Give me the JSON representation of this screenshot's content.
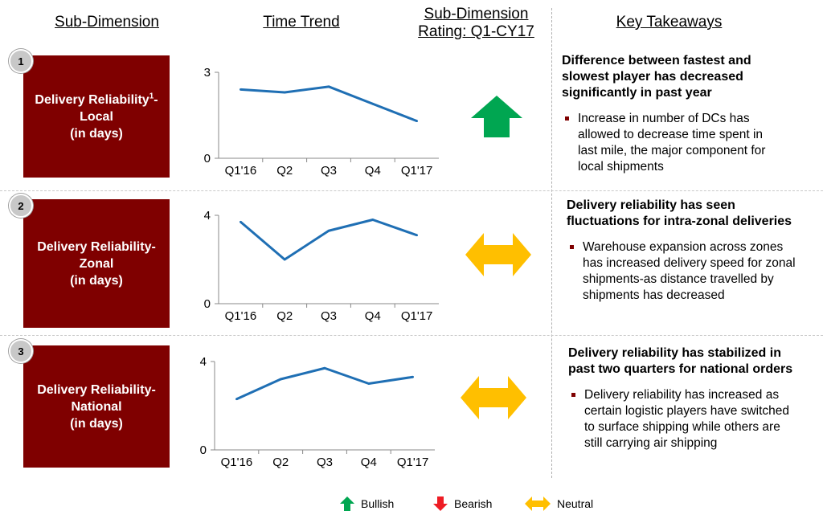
{
  "headers": {
    "sub_dimension": "Sub-Dimension",
    "time_trend": "Time Trend",
    "rating_line1": "Sub-Dimension",
    "rating_line2": "Rating: Q1-CY17",
    "key_takeaways": "Key Takeaways"
  },
  "rows": [
    {
      "number": "1",
      "label_line1": "Delivery Reliability",
      "label_sup": "1",
      "label_line1_suffix": "-",
      "label_line2": "Local",
      "label_line3": "(in days)",
      "rating": "bullish",
      "rating_icon": "green-up-arrow-icon",
      "takeaway_title": "Difference between fastest and slowest player has decreased significantly in past year",
      "takeaway_bullet": "Increase in number of DCs has allowed to decrease time spent in last mile, the major component for local shipments"
    },
    {
      "number": "2",
      "label_line1": "Delivery Reliability-",
      "label_line2": "Zonal",
      "label_line3": "(in days)",
      "rating": "neutral",
      "rating_icon": "yellow-double-arrow-icon",
      "takeaway_title": "Delivery reliability has seen fluctuations for intra-zonal deliveries",
      "takeaway_bullet": "Warehouse expansion across zones has increased delivery speed for zonal shipments-as distance travelled by shipments has decreased"
    },
    {
      "number": "3",
      "label_line1": "Delivery Reliability-",
      "label_line2": "National",
      "label_line3": "(in days)",
      "rating": "neutral",
      "rating_icon": "yellow-double-arrow-icon",
      "takeaway_title": "Delivery reliability has stabilized in past two quarters for national orders",
      "takeaway_bullet": "Delivery reliability has increased as certain logistic players have switched to surface shipping while others are still carrying air shipping"
    }
  ],
  "chart_data": [
    {
      "type": "line",
      "title": "",
      "categories": [
        "Q1'16",
        "Q2",
        "Q3",
        "Q4",
        "Q1'17"
      ],
      "values": [
        2.4,
        2.3,
        2.5,
        1.9,
        1.3
      ],
      "ylim": [
        0,
        3
      ],
      "yticks": [
        "0",
        "3"
      ],
      "color": "#1f6fb4"
    },
    {
      "type": "line",
      "title": "",
      "categories": [
        "Q1'16",
        "Q2",
        "Q3",
        "Q4",
        "Q1'17"
      ],
      "values": [
        3.7,
        2.0,
        3.3,
        3.8,
        3.1
      ],
      "ylim": [
        0,
        4
      ],
      "yticks": [
        "0",
        "4"
      ],
      "color": "#1f6fb4"
    },
    {
      "type": "line",
      "title": "",
      "categories": [
        "Q1'16",
        "Q2",
        "Q3",
        "Q4",
        "Q1'17"
      ],
      "values": [
        2.3,
        3.2,
        3.7,
        3.0,
        3.3
      ],
      "ylim": [
        0,
        4
      ],
      "yticks": [
        "0",
        "4"
      ],
      "color": "#1f6fb4"
    }
  ],
  "legend": {
    "bullish": "Bullish",
    "bearish": "Bearish",
    "neutral": "Neutral",
    "colors": {
      "bullish": "#00a651",
      "bearish": "#ee1c24",
      "neutral": "#ffbf00"
    }
  }
}
